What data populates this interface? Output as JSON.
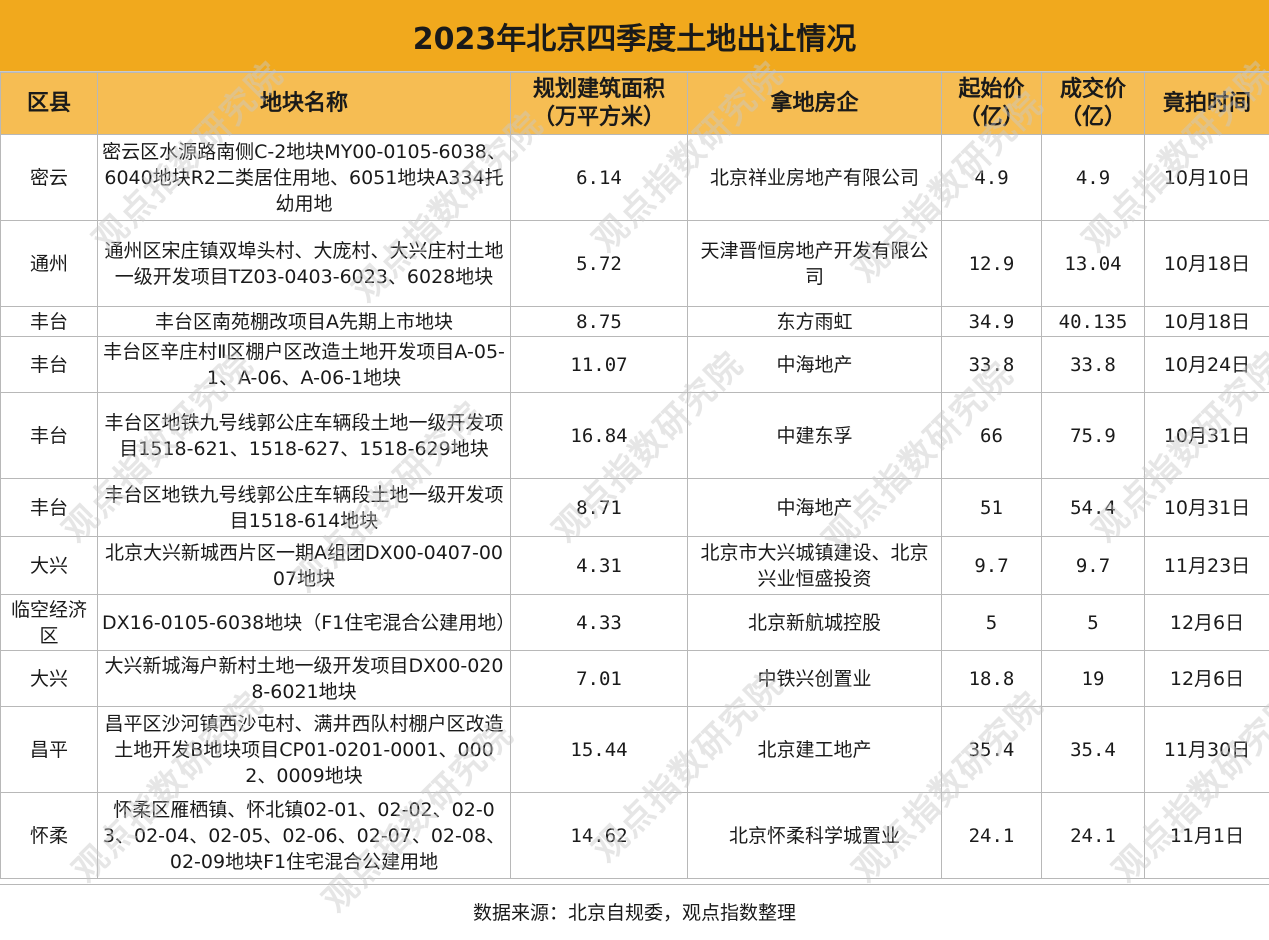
{
  "title": "2023年北京四季度土地出让情况",
  "headers": [
    "区县",
    "地块名称",
    "规划建筑面积\n（万平方米）",
    "拿地房企",
    "起始价\n（亿）",
    "成交价\n（亿）",
    "竟拍时间"
  ],
  "rows": [
    {
      "district": "密云",
      "parcel": "密云区水源路南侧C-2地块MY00-0105-6038、6040地块R2二类居住用地、6051地块A334托幼用地",
      "area": "6.14",
      "buyer": "北京祥业房地产有限公司",
      "start_price": "4.9",
      "deal_price": "4.9",
      "date": "10月10日"
    },
    {
      "district": "通州",
      "parcel": "通州区宋庄镇双埠头村、大庞村、大兴庄村土地一级开发项目TZ03-0403-6023、6028地块",
      "area": "5.72",
      "buyer": "天津晋恒房地产开发有限公司",
      "start_price": "12.9",
      "deal_price": "13.04",
      "date": "10月18日"
    },
    {
      "district": "丰台",
      "parcel": "丰台区南苑棚改项目A先期上市地块",
      "area": "8.75",
      "buyer": "东方雨虹",
      "start_price": "34.9",
      "deal_price": "40.135",
      "date": "10月18日"
    },
    {
      "district": "丰台",
      "parcel": "丰台区辛庄村Ⅱ区棚户区改造土地开发项目A-05-1、A-06、A-06-1地块",
      "area": "11.07",
      "buyer": "中海地产",
      "start_price": "33.8",
      "deal_price": "33.8",
      "date": "10月24日"
    },
    {
      "district": "丰台",
      "parcel": "丰台区地铁九号线郭公庄车辆段土地一级开发项目1518-621、1518-627、1518-629地块",
      "area": "16.84",
      "buyer": "中建东孚",
      "start_price": "66",
      "deal_price": "75.9",
      "date": "10月31日"
    },
    {
      "district": "丰台",
      "parcel": "丰台区地铁九号线郭公庄车辆段土地一级开发项目1518-614地块",
      "area": "8.71",
      "buyer": "中海地产",
      "start_price": "51",
      "deal_price": "54.4",
      "date": "10月31日"
    },
    {
      "district": "大兴",
      "parcel": "北京大兴新城西片区一期A组团DX00-0407-0007地块",
      "area": "4.31",
      "buyer": "北京市大兴城镇建设、北京兴业恒盛投资",
      "start_price": "9.7",
      "deal_price": "9.7",
      "date": "11月23日"
    },
    {
      "district": "临空经济区",
      "parcel": "DX16-0105-6038地块（F1住宅混合公建用地）",
      "area": "4.33",
      "buyer": "北京新航城控股",
      "start_price": "5",
      "deal_price": "5",
      "date": "12月6日"
    },
    {
      "district": "大兴",
      "parcel": "大兴新城海户新村土地一级开发项目DX00-0208-6021地块",
      "area": "7.01",
      "buyer": "中铁兴创置业",
      "start_price": "18.8",
      "deal_price": "19",
      "date": "12月6日"
    },
    {
      "district": "昌平",
      "parcel": "昌平区沙河镇西沙屯村、满井西队村棚户区改造土地开发B地块项目CP01-0201-0001、0002、0009地块",
      "area": "15.44",
      "buyer": "北京建工地产",
      "start_price": "35.4",
      "deal_price": "35.4",
      "date": "11月30日"
    },
    {
      "district": "怀柔",
      "parcel": "怀柔区雁栖镇、怀北镇02-01、02-02、02-03、02-04、02-05、02-06、02-07、02-08、02-09地块F1住宅混合公建用地",
      "area": "14.62",
      "buyer": "北京怀柔科学城置业",
      "start_price": "24.1",
      "deal_price": "24.1",
      "date": "11月1日"
    }
  ],
  "footer": "数据来源：北京自规委，观点指数整理",
  "watermark": "观点指数研究院",
  "colors": {
    "title_bg": "#f1a91d",
    "header_bg": "#f6bd53",
    "border": "#b8b8b8"
  }
}
